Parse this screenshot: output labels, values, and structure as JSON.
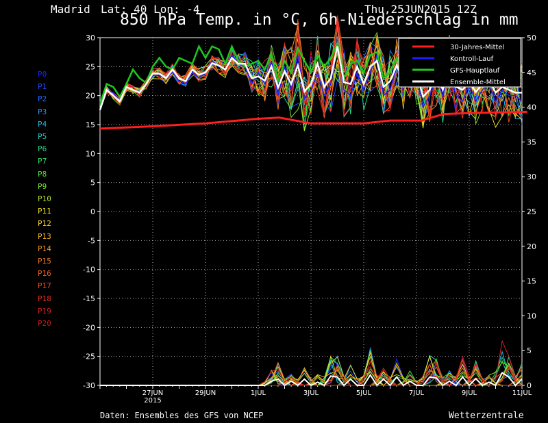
{
  "header": {
    "location": "Madrid",
    "coords": "Lat: 40 Lon: -4",
    "run": "Thu,25JUN2015 12Z",
    "title": "850 hPa Temp. in °C, 6h-Niederschlag in mm"
  },
  "footer": {
    "source": "Daten: Ensembles des GFS von NCEP",
    "brand": "Wetterzentrale"
  },
  "colors": {
    "background": "#000000",
    "climate": "#ff1e1e",
    "control": "#1e1eff",
    "gfs": "#1ec81e",
    "mean": "#ffffff"
  },
  "ensemble_members": [
    {
      "label": "P0",
      "color": "#2020ff"
    },
    {
      "label": "P1",
      "color": "#2048ff"
    },
    {
      "label": "P2",
      "color": "#2070ff"
    },
    {
      "label": "P3",
      "color": "#2098ff"
    },
    {
      "label": "P4",
      "color": "#20b8e8"
    },
    {
      "label": "P5",
      "color": "#20d0c0"
    },
    {
      "label": "P6",
      "color": "#20d890"
    },
    {
      "label": "P7",
      "color": "#30e060"
    },
    {
      "label": "P8",
      "color": "#50e030"
    },
    {
      "label": "P9",
      "color": "#80e020"
    },
    {
      "label": "P10",
      "color": "#b0e020"
    },
    {
      "label": "P11",
      "color": "#e0e020"
    },
    {
      "label": "P12",
      "color": "#f0d020"
    },
    {
      "label": "P13",
      "color": "#f0b020"
    },
    {
      "label": "P14",
      "color": "#f09020"
    },
    {
      "label": "P15",
      "color": "#f07820"
    },
    {
      "label": "P16",
      "color": "#f06020"
    },
    {
      "label": "P17",
      "color": "#f04820"
    },
    {
      "label": "P18",
      "color": "#e83020"
    },
    {
      "label": "P19",
      "color": "#e02020"
    },
    {
      "label": "P20",
      "color": "#c81818"
    }
  ],
  "chart_data": {
    "type": "line",
    "title": "850 hPa Temp. in °C, 6h-Niederschlag in mm",
    "x_range": [
      "2015-06-25T12Z",
      "2015-07-11T12Z"
    ],
    "x_step_hours": 6,
    "x_ticks": [
      {
        "label": "27JUN",
        "sub": "2015",
        "day": 2
      },
      {
        "label": "29JUN",
        "day": 4
      },
      {
        "label": "1JUL",
        "day": 6
      },
      {
        "label": "3JUL",
        "day": 8
      },
      {
        "label": "5JUL",
        "day": 10
      },
      {
        "label": "7JUL",
        "day": 12
      },
      {
        "label": "9JUL",
        "day": 14
      },
      {
        "label": "11JUL",
        "day": 16
      }
    ],
    "y_left": {
      "range": [
        -30,
        30
      ],
      "ticks": [
        30,
        25,
        20,
        15,
        10,
        5,
        0,
        -5,
        -10,
        -15,
        -20,
        -25,
        -30
      ],
      "unit": "°C"
    },
    "y_right": {
      "range": [
        0,
        50
      ],
      "ticks": [
        50,
        45,
        40,
        35,
        30,
        25,
        20,
        15,
        10,
        5,
        0
      ],
      "unit": "mm"
    },
    "grid": true,
    "legend_position": "top-right",
    "legend": [
      {
        "key": "climate",
        "label": "30-Jahres-Mittel"
      },
      {
        "key": "control",
        "label": "Kontroll-Lauf"
      },
      {
        "key": "gfs",
        "label": "GFS-Hauptlauf"
      },
      {
        "key": "mean",
        "label": "Ensemble-Mittel"
      }
    ],
    "climate_x": [
      0,
      2,
      4,
      6,
      6.8,
      8,
      10,
      11,
      12.2,
      13,
      14,
      16.2
    ],
    "climate_y": [
      14.3,
      14.7,
      15.2,
      16,
      16.2,
      15.2,
      15.2,
      15.7,
      15.7,
      16.8,
      17,
      17.2
    ],
    "mean_temp": [
      17.5,
      21,
      20,
      19,
      21.5,
      21,
      20.5,
      22,
      23.8,
      23.8,
      23,
      24.5,
      23,
      22.5,
      24.5,
      23.6,
      24,
      25.6,
      25.2,
      24.5,
      26.5,
      25.5,
      25.5,
      23,
      23.3,
      22.6,
      25,
      21.4,
      24.2,
      22,
      25.2,
      20.7,
      22,
      25.5,
      21.5,
      23,
      28.5,
      22.3,
      22,
      25,
      22,
      25,
      26,
      21.5,
      22.5,
      25.2,
      22.5,
      25,
      24,
      19.8,
      21,
      23.5,
      21,
      24.8,
      21.5,
      21,
      22.4,
      20.6,
      22,
      22.8,
      20.5,
      21.5,
      21,
      20.5,
      20.5
    ],
    "gfs_temp": [
      18.5,
      22,
      21.5,
      19.8,
      22,
      24.5,
      23,
      22.2,
      25,
      26.5,
      25,
      24.5,
      26.5,
      26,
      25.5,
      28.5,
      26.5,
      28.5,
      28,
      25.5,
      28.5,
      26,
      25,
      25.5,
      26,
      24.5,
      27.2,
      22.5,
      26,
      24,
      28.2,
      26,
      24,
      27,
      25,
      26.5,
      29,
      23,
      25.5,
      26,
      24,
      27,
      27.5,
      23,
      24,
      26.5,
      24,
      27,
      26,
      23,
      24,
      25,
      26,
      25,
      24,
      25,
      26,
      24,
      25,
      26,
      25,
      25,
      24,
      24,
      23
    ],
    "control_temp": [
      17.5,
      21,
      20.5,
      19,
      21.5,
      21,
      20.5,
      22,
      23.5,
      23.5,
      23,
      24,
      22.5,
      22,
      24,
      23,
      24,
      26,
      25,
      24.5,
      27,
      25.5,
      25,
      22,
      24,
      22,
      26,
      20,
      25,
      21,
      27,
      19.5,
      21,
      24,
      20,
      22,
      29,
      21,
      20,
      24,
      21,
      24,
      27,
      20,
      21,
      25,
      21,
      24,
      24,
      18,
      20,
      23,
      20,
      24,
      20,
      19,
      22,
      19,
      21,
      22,
      19,
      21,
      20,
      20,
      19
    ],
    "member_spread": [
      0,
      0.6,
      0.6,
      0.7,
      0.8,
      0.8,
      0.8,
      0.9,
      1,
      1,
      1,
      1.1,
      1.1,
      1.2,
      1.2,
      1.2,
      1.3,
      1.3,
      1.4,
      1.5,
      1.6,
      1.8,
      2,
      3,
      3.5,
      3.8,
      4,
      4.5,
      5,
      6.5,
      8,
      7,
      6,
      5,
      5.5,
      6,
      6,
      6,
      5.5,
      5,
      5,
      5,
      5,
      5.5,
      5.5,
      5,
      5,
      5.5,
      5.5,
      6,
      6,
      6,
      6,
      6,
      6,
      6,
      6,
      6,
      6,
      6,
      6,
      6,
      6,
      6,
      6
    ],
    "precip_peaks": [
      {
        "i": 26,
        "v": 2
      },
      {
        "i": 27,
        "v": 3
      },
      {
        "i": 29,
        "v": 2
      },
      {
        "i": 31,
        "v": 3
      },
      {
        "i": 33,
        "v": 1.5
      },
      {
        "i": 35,
        "v": 4.5
      },
      {
        "i": 36,
        "v": 4
      },
      {
        "i": 38,
        "v": 3
      },
      {
        "i": 41,
        "v": 5
      },
      {
        "i": 43,
        "v": 3
      },
      {
        "i": 45,
        "v": 4
      },
      {
        "i": 47,
        "v": 2
      },
      {
        "i": 50,
        "v": 4
      },
      {
        "i": 51,
        "v": 3.5
      },
      {
        "i": 53,
        "v": 2
      },
      {
        "i": 55,
        "v": 4
      },
      {
        "i": 57,
        "v": 3.2
      },
      {
        "i": 59,
        "v": 1.5
      },
      {
        "i": 61,
        "v": 6
      },
      {
        "i": 62,
        "v": 4
      },
      {
        "i": 64,
        "v": 3
      }
    ]
  }
}
